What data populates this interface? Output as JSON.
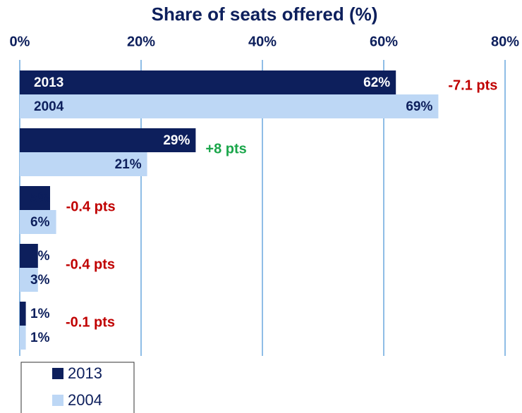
{
  "chart_data": {
    "type": "hbar",
    "title": "Share of seats offered (%)",
    "categories": [
      null,
      null,
      null,
      null,
      null
    ],
    "series": [
      {
        "name": "2013",
        "color": "#0d1f5c",
        "values": [
          62,
          29,
          5,
          3,
          1
        ],
        "value_labels": [
          "62%",
          "29%",
          "5%",
          "3%",
          "1%"
        ]
      },
      {
        "name": "2004",
        "color": "#bdd7f5",
        "values": [
          69,
          21,
          6,
          3,
          1
        ],
        "value_labels": [
          "69%",
          "21%",
          "6%",
          "3%",
          "1%"
        ]
      }
    ],
    "annotations": [
      {
        "text": "-7.1 pts",
        "color": "#c00000"
      },
      {
        "text": "+8 pts",
        "color": "#1aa64a"
      },
      {
        "text": "-0.4 pts",
        "color": "#c00000"
      },
      {
        "text": "-0.4 pts",
        "color": "#c00000"
      },
      {
        "text": "-0.1 pts",
        "color": "#c00000"
      }
    ],
    "xlim": [
      0,
      80
    ],
    "xticks": [
      {
        "value": 0,
        "label": "0%"
      },
      {
        "value": 20,
        "label": "20%"
      },
      {
        "value": 40,
        "label": "40%"
      },
      {
        "value": 60,
        "label": "60%"
      },
      {
        "value": 80,
        "label": "80%"
      }
    ],
    "grid": true,
    "legend": "bottom-left"
  }
}
